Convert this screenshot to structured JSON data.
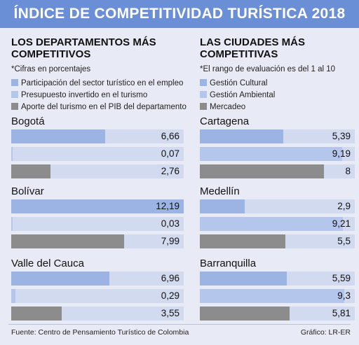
{
  "title": "ÍNDICE DE COMPETITIVIDAD TURÍSTICA 2018",
  "chart_data": [
    {
      "type": "bar",
      "title": "LOS DEPARTAMENTOS MÁS COMPETITIVOS",
      "note": "*Cifras en porcentajes",
      "categories": [
        "Bogotá",
        "Bolívar",
        "Valle del Cauca"
      ],
      "series": [
        {
          "name": "Participación del sector turístico en el empleo",
          "color": "#9cb4e4",
          "values": [
            6.66,
            12.19,
            6.96
          ],
          "labels": [
            "6,66",
            "12,19",
            "6,96"
          ]
        },
        {
          "name": "Presupuesto invertido en el turismo",
          "color": "#b4c6ec",
          "values": [
            0.07,
            0.03,
            0.29
          ],
          "labels": [
            "0,07",
            "0,03",
            "0,29"
          ]
        },
        {
          "name": "Aporte del turismo en el PIB del departamento",
          "color": "#8c8c8c",
          "values": [
            2.76,
            7.99,
            3.55
          ],
          "labels": [
            "2,76",
            "7,99",
            "3,55"
          ]
        }
      ],
      "xlim": [
        0,
        12.19
      ]
    },
    {
      "type": "bar",
      "title": "LAS CIUDADES MÁS COMPETITIVAS",
      "note": "*El rango de evaluación es del 1 al 10",
      "categories": [
        "Cartagena",
        "Medellín",
        "Barranquilla"
      ],
      "series": [
        {
          "name": "Gestión Cultural",
          "color": "#9cb4e4",
          "values": [
            5.39,
            2.9,
            5.59
          ],
          "labels": [
            "5,39",
            "2,9",
            "5,59"
          ]
        },
        {
          "name": "Gestión Ambiental",
          "color": "#b4c6ec",
          "values": [
            9.19,
            9.21,
            9.3
          ],
          "labels": [
            "9,19",
            "9,21",
            "9,3"
          ]
        },
        {
          "name": "Mercadeo",
          "color": "#8c8c8c",
          "values": [
            8,
            5.5,
            5.81
          ],
          "labels": [
            "8",
            "5,5",
            "5,81"
          ]
        }
      ],
      "xlim": [
        0,
        10
      ]
    }
  ],
  "footer": {
    "source": "Fuente: Centro de Pensamiento Turístico de Colombia",
    "credit": "Gráfico: LR-ER"
  }
}
